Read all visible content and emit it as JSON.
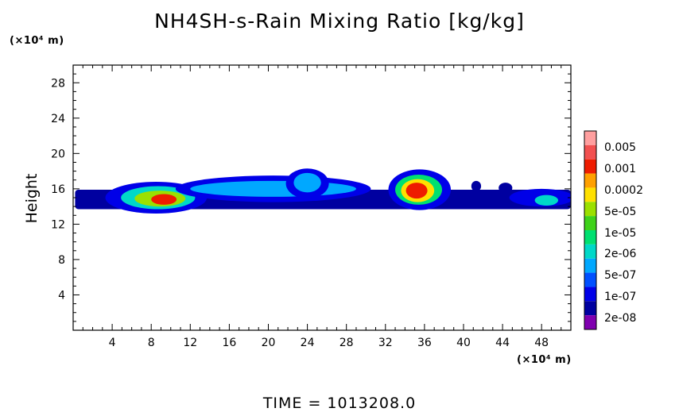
{
  "chart_data": {
    "type": "heatmap",
    "title": "NH4SH-s-Rain Mixing Ratio [kg/kg]",
    "ylabel": "Height",
    "y_unit": "(×10⁴ m)",
    "x_unit": "(×10⁴ m)",
    "xlim": [
      0,
      51
    ],
    "ylim": [
      0,
      30
    ],
    "x_ticks": [
      4,
      8,
      12,
      16,
      20,
      24,
      28,
      32,
      36,
      40,
      44,
      48
    ],
    "y_ticks": [
      4,
      8,
      12,
      16,
      20,
      24,
      28
    ],
    "time_label": "TIME  =  1013208.0",
    "colorbar": {
      "labels": [
        "0.005",
        "0.001",
        "0.0002",
        "5e-05",
        "1e-05",
        "2e-06",
        "5e-07",
        "1e-07",
        "2e-08"
      ],
      "colors": [
        "#ff9f9f",
        "#f25050",
        "#ee1c00",
        "#ffa000",
        "#ffe000",
        "#9be000",
        "#3fd21a",
        "#00e070",
        "#00d8c8",
        "#00a8ff",
        "#0050ff",
        "#0000e8",
        "#0000a0",
        "#8000b0"
      ]
    },
    "features": [
      {
        "name": "band",
        "x0": 0.2,
        "x1": 51,
        "y0": 13.7,
        "y1": 15.9,
        "level": 12
      },
      {
        "name": "cell1-outer",
        "cx": 8.5,
        "cy": 15.0,
        "rx": 5.2,
        "ry": 1.8,
        "level": 11
      },
      {
        "name": "cell1-mid",
        "cx": 8.7,
        "cy": 15.0,
        "rx": 3.8,
        "ry": 1.3,
        "level": 8
      },
      {
        "name": "cell1-inner",
        "cx": 8.9,
        "cy": 14.9,
        "rx": 2.6,
        "ry": 0.9,
        "level": 5
      },
      {
        "name": "cell1-core",
        "cx": 9.3,
        "cy": 14.8,
        "rx": 1.3,
        "ry": 0.6,
        "level": 2
      },
      {
        "name": "ridge-outer",
        "cx": 20.5,
        "cy": 16.0,
        "rx": 10.0,
        "ry": 1.5,
        "level": 11
      },
      {
        "name": "ridge-mid",
        "cx": 20.5,
        "cy": 16.0,
        "rx": 8.5,
        "ry": 0.9,
        "level": 9
      },
      {
        "name": "tower-outer",
        "cx": 24.0,
        "cy": 16.6,
        "rx": 2.2,
        "ry": 1.7,
        "level": 11
      },
      {
        "name": "tower-mid",
        "cx": 24.0,
        "cy": 16.7,
        "rx": 1.4,
        "ry": 1.1,
        "level": 9
      },
      {
        "name": "cell2-outer",
        "cx": 35.5,
        "cy": 15.9,
        "rx": 3.2,
        "ry": 2.3,
        "level": 11
      },
      {
        "name": "cell2-mid",
        "cx": 35.4,
        "cy": 15.9,
        "rx": 2.4,
        "ry": 1.7,
        "level": 7
      },
      {
        "name": "cell2-inner",
        "cx": 35.3,
        "cy": 15.8,
        "rx": 1.7,
        "ry": 1.3,
        "level": 4
      },
      {
        "name": "cell2-core",
        "cx": 35.2,
        "cy": 15.8,
        "rx": 1.1,
        "ry": 0.9,
        "level": 2
      },
      {
        "name": "blob-41",
        "cx": 41.3,
        "cy": 16.3,
        "rx": 0.5,
        "ry": 0.6,
        "level": 12
      },
      {
        "name": "blob-44",
        "cx": 44.3,
        "cy": 16.1,
        "rx": 0.7,
        "ry": 0.6,
        "level": 12
      },
      {
        "name": "cell3-outer",
        "cx": 48.0,
        "cy": 15.0,
        "rx": 3.3,
        "ry": 1.0,
        "level": 11
      },
      {
        "name": "cell3-inner",
        "cx": 48.5,
        "cy": 14.7,
        "rx": 1.2,
        "ry": 0.6,
        "level": 8
      }
    ]
  }
}
